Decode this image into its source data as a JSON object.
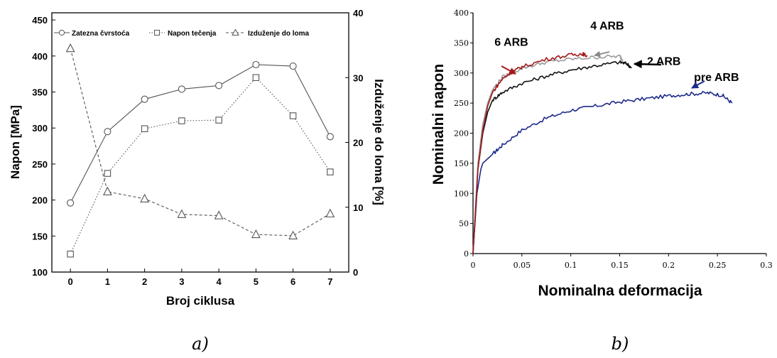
{
  "chart_data": [
    {
      "type": "line",
      "caption": "a)",
      "x": [
        0,
        1,
        2,
        3,
        4,
        5,
        6,
        7
      ],
      "xlabel": "Broj ciklusa",
      "ylabel": "Napon [MPa]",
      "ylabel_right": "Izduženje do loma [%]",
      "xlim": [
        -0.5,
        7.5
      ],
      "ylim": [
        100,
        460
      ],
      "ylim_right": [
        0,
        40
      ],
      "xticks": [
        0,
        1,
        2,
        3,
        4,
        5,
        6,
        7
      ],
      "yticks": [
        100,
        150,
        200,
        250,
        300,
        350,
        400,
        450
      ],
      "yticks_right": [
        0,
        10,
        20,
        30,
        40
      ],
      "legend_position": "top",
      "grid": false,
      "series": [
        {
          "name": "Zatezna čvrstoća",
          "axis": "left",
          "marker": "circle",
          "line": "solid",
          "values": [
            196,
            295,
            340,
            354,
            359,
            388,
            386,
            288
          ]
        },
        {
          "name": "Napon tečenja",
          "axis": "left",
          "marker": "square",
          "line": "dotted",
          "values": [
            125,
            237,
            299,
            310,
            311,
            370,
            317,
            239
          ]
        },
        {
          "name": "Izduženje do loma",
          "axis": "right",
          "marker": "triangle",
          "line": "dashed",
          "values": [
            34.5,
            12.4,
            11.3,
            8.9,
            8.7,
            5.8,
            5.6,
            9.0
          ]
        }
      ]
    },
    {
      "type": "line",
      "caption": "b)",
      "xlabel": "Nominalna deformacija",
      "ylabel": "Nominalni napon",
      "xlim": [
        0,
        0.3
      ],
      "ylim": [
        0,
        400
      ],
      "xticks": [
        0,
        0.05,
        0.1,
        0.15,
        0.2,
        0.25,
        0.3
      ],
      "xtick_labels": [
        "0",
        "0.05",
        "0.1",
        "0.15",
        "0.2",
        "0.25",
        "0.3"
      ],
      "yticks": [
        0,
        50,
        100,
        150,
        200,
        250,
        300,
        350,
        400
      ],
      "grid": false,
      "series": [
        {
          "name": "pre ARB",
          "color": "#1c2a8c",
          "x": [
            0,
            0.004,
            0.008,
            0.01,
            0.02,
            0.03,
            0.05,
            0.075,
            0.1,
            0.125,
            0.15,
            0.175,
            0.2,
            0.22,
            0.24,
            0.255,
            0.265
          ],
          "values": [
            0,
            100,
            140,
            150,
            165,
            180,
            205,
            225,
            238,
            245,
            252,
            257,
            262,
            265,
            267,
            263,
            250
          ]
        },
        {
          "name": "2 ARB",
          "color": "#111111",
          "x": [
            0,
            0.005,
            0.01,
            0.015,
            0.02,
            0.03,
            0.05,
            0.075,
            0.1,
            0.125,
            0.15,
            0.158,
            0.162
          ],
          "values": [
            0,
            140,
            200,
            235,
            255,
            268,
            283,
            295,
            305,
            312,
            318,
            315,
            308
          ]
        },
        {
          "name": "4 ARB",
          "color": "#9a9a9a",
          "x": [
            0,
            0.005,
            0.01,
            0.015,
            0.02,
            0.03,
            0.05,
            0.075,
            0.1,
            0.125,
            0.15,
            0.153
          ],
          "values": [
            0,
            150,
            215,
            250,
            272,
            293,
            308,
            318,
            323,
            326,
            328,
            322
          ]
        },
        {
          "name": "6 ARB",
          "color": "#a11a1a",
          "x": [
            0,
            0.005,
            0.01,
            0.015,
            0.02,
            0.03,
            0.04,
            0.05,
            0.075,
            0.1,
            0.112,
            0.117
          ],
          "values": [
            0,
            140,
            205,
            245,
            268,
            290,
            302,
            310,
            323,
            330,
            332,
            328
          ]
        }
      ],
      "annotations": [
        {
          "text": "6 ARB",
          "x": 0.022,
          "y": 345
        },
        {
          "text": "4 ARB",
          "x": 0.12,
          "y": 372
        },
        {
          "text": "2 ARB",
          "x": 0.178,
          "y": 313
        },
        {
          "text": "pre ARB",
          "x": 0.226,
          "y": 287
        }
      ]
    }
  ]
}
